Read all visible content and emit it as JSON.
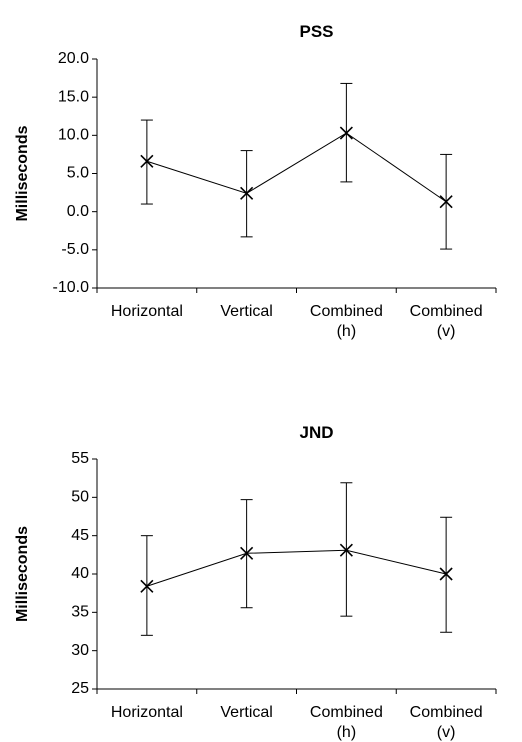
{
  "chart_data": [
    {
      "type": "line",
      "title": "PSS",
      "xlabel": "",
      "ylabel": "Milliseconds",
      "ylim": [
        -10,
        20
      ],
      "yticks": [
        "20.0",
        "15.0",
        "10.0",
        "5.0",
        "0.0",
        "-5.0",
        "-10.0"
      ],
      "categories": [
        [
          "Horizontal"
        ],
        [
          "Vertical"
        ],
        [
          "Combined",
          "(h)"
        ],
        [
          "Combined",
          "(v)"
        ]
      ],
      "series": [
        {
          "values": [
            6.6,
            2.4,
            10.3,
            1.3
          ],
          "error_low": [
            1.0,
            -3.3,
            3.9,
            -4.9
          ],
          "error_high": [
            12.0,
            8.0,
            16.8,
            7.5
          ]
        }
      ],
      "marker": "x",
      "grid": false
    },
    {
      "type": "line",
      "title": "JND",
      "xlabel": "",
      "ylabel": "Milliseconds",
      "ylim": [
        25,
        55
      ],
      "yticks": [
        "55",
        "50",
        "45",
        "40",
        "35",
        "30",
        "25"
      ],
      "categories": [
        [
          "Horizontal"
        ],
        [
          "Vertical"
        ],
        [
          "Combined",
          "(h)"
        ],
        [
          "Combined",
          "(v)"
        ]
      ],
      "series": [
        {
          "values": [
            38.4,
            42.7,
            43.1,
            40.0
          ],
          "error_low": [
            32.0,
            35.6,
            34.5,
            32.4
          ],
          "error_high": [
            45.0,
            49.7,
            51.9,
            47.4
          ]
        }
      ],
      "marker": "x",
      "grid": false
    }
  ]
}
